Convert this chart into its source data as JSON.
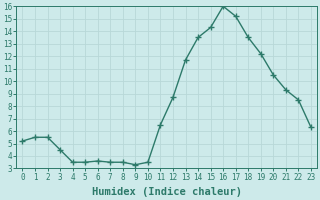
{
  "x": [
    0,
    1,
    2,
    3,
    4,
    5,
    6,
    7,
    8,
    9,
    10,
    11,
    12,
    13,
    14,
    15,
    16,
    17,
    18,
    19,
    20,
    21,
    22,
    23
  ],
  "y": [
    5.2,
    5.5,
    5.5,
    4.5,
    3.5,
    3.5,
    3.6,
    3.5,
    3.5,
    3.3,
    3.5,
    6.5,
    8.7,
    11.7,
    13.5,
    14.3,
    16.0,
    15.2,
    13.5,
    12.2,
    10.5,
    9.3,
    8.5,
    6.3
  ],
  "line_color": "#2d7a6a",
  "bg_color": "#cdeaea",
  "grid_color": "#b8d8d8",
  "xlabel": "Humidex (Indice chaleur)",
  "ylim": [
    3,
    16
  ],
  "xlim": [
    -0.5,
    23.5
  ],
  "yticks": [
    3,
    4,
    5,
    6,
    7,
    8,
    9,
    10,
    11,
    12,
    13,
    14,
    15,
    16
  ],
  "xticks": [
    0,
    1,
    2,
    3,
    4,
    5,
    6,
    7,
    8,
    9,
    10,
    11,
    12,
    13,
    14,
    15,
    16,
    17,
    18,
    19,
    20,
    21,
    22,
    23
  ],
  "marker": "+",
  "markersize": 4,
  "linewidth": 1.0,
  "tick_fontsize": 5.5,
  "xlabel_fontsize": 7.5
}
